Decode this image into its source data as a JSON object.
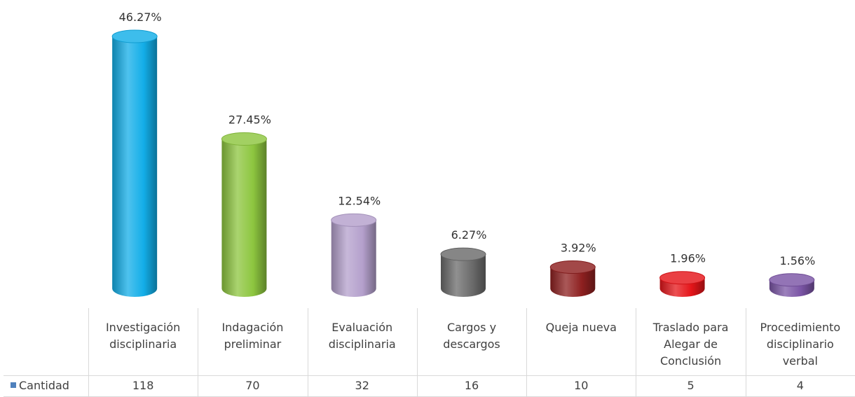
{
  "chart_data": {
    "type": "bar",
    "categories": [
      [
        "Investigación",
        "disciplinaria"
      ],
      [
        "Indagación",
        "preliminar"
      ],
      [
        "Evaluación",
        "disciplinaria"
      ],
      [
        "Cargos y",
        "descargos"
      ],
      [
        "Queja nueva"
      ],
      [
        "Traslado para",
        "Alegar de",
        "Conclusión"
      ],
      [
        "Procedimiento",
        "disciplinario",
        "verbal"
      ]
    ],
    "series": [
      {
        "name": "Cantidad",
        "values": [
          118,
          70,
          32,
          16,
          10,
          5,
          4
        ]
      }
    ],
    "data_labels": [
      "46.27%",
      "27.45%",
      "12.54%",
      "6.27%",
      "3.92%",
      "1.96%",
      "1.56%"
    ],
    "colors": [
      "#13AEE8",
      "#8DC63F",
      "#B4A0CC",
      "#6B6B6B",
      "#8E2020",
      "#E5151A",
      "#7B55A6"
    ],
    "legend_color": "#4F81BD",
    "value_max": 118,
    "data_table": true
  }
}
